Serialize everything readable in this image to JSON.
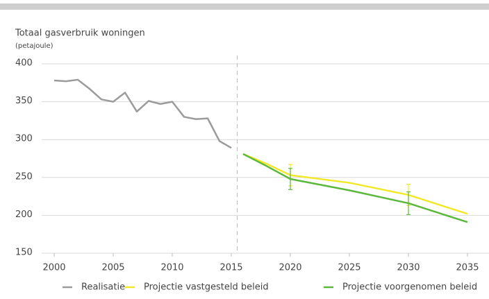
{
  "chart_data": {
    "type": "line",
    "title": "Totaal gasverbruik woningen",
    "subtitle": "(petajoule)",
    "xlim": [
      1999,
      2036.5
    ],
    "xticks": [
      2000,
      2005,
      2010,
      2015,
      2020,
      2025,
      2030,
      2035
    ],
    "ylim": [
      150,
      400
    ],
    "yticks": [
      150,
      200,
      250,
      300,
      350,
      400
    ],
    "grid": true,
    "divider_x": 2015.5,
    "legend": "bottom",
    "series": [
      {
        "name": "Realisatie",
        "color": "#9b9b9b",
        "x": [
          2000,
          2001,
          2002,
          2003,
          2004,
          2005,
          2006,
          2007,
          2008,
          2009,
          2010,
          2011,
          2012,
          2013,
          2014,
          2015
        ],
        "values": [
          378,
          377,
          379,
          367,
          353,
          350,
          362,
          337,
          351,
          347,
          350,
          330,
          327,
          328,
          298,
          289
        ],
        "errors": [
          null,
          null,
          null,
          null,
          null,
          null,
          null,
          null,
          null,
          null,
          null,
          null,
          null,
          null,
          null,
          null
        ]
      },
      {
        "name": "Projectie vastgesteld beleid",
        "color": "#f2e82a",
        "x": [
          2016,
          2018,
          2020,
          2025,
          2030,
          2035
        ],
        "values": [
          281,
          268,
          253,
          243,
          227,
          202
        ],
        "errors": [
          null,
          null,
          14,
          null,
          14,
          null
        ]
      },
      {
        "name": "Projectie voorgenomen beleid",
        "color": "#5cb83c",
        "x": [
          2016,
          2018,
          2020,
          2025,
          2030,
          2035
        ],
        "values": [
          281,
          265,
          248,
          233,
          216,
          191
        ],
        "errors": [
          null,
          null,
          14,
          null,
          15,
          null
        ]
      }
    ]
  }
}
